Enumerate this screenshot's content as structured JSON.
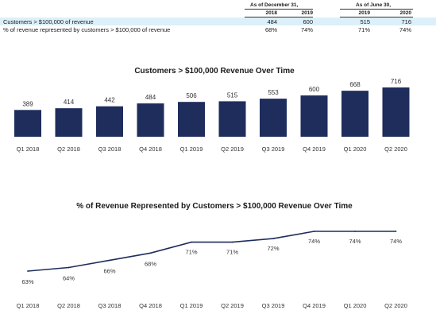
{
  "table": {
    "group_headers": [
      "As of December 31,",
      "As of June 30,"
    ],
    "year_headers": [
      "2018",
      "2019",
      "2019",
      "2020"
    ],
    "rows": [
      {
        "label": "Customers > $100,000 of revenue",
        "values": [
          "484",
          "600",
          "515",
          "716"
        ]
      },
      {
        "label": "% of revenue represented by customers > $100,000 of revenue",
        "values": [
          "68%",
          "74%",
          "71%",
          "74%"
        ]
      }
    ]
  },
  "chart_data": [
    {
      "type": "bar",
      "title": "Customers > $100,000 Revenue Over Time",
      "xlabel": "",
      "ylabel": "",
      "categories": [
        "Q1 2018",
        "Q2 2018",
        "Q3 2018",
        "Q4 2018",
        "Q1 2019",
        "Q2 2019",
        "Q3 2019",
        "Q4 2019",
        "Q1 2020",
        "Q2 2020"
      ],
      "values": [
        389,
        414,
        442,
        484,
        506,
        515,
        553,
        600,
        668,
        716
      ],
      "data_labels": [
        "389",
        "414",
        "442",
        "484",
        "506",
        "515",
        "553",
        "600",
        "668",
        "716"
      ],
      "bar_color": "#1f2d5c",
      "ylim": [
        0,
        716
      ],
      "grid": false,
      "legend": "none"
    },
    {
      "type": "line",
      "title": "% of Revenue Represented by Customers > $100,000 Revenue Over Time",
      "xlabel": "",
      "ylabel": "",
      "categories": [
        "Q1 2018",
        "Q2 2018",
        "Q3 2018",
        "Q4 2018",
        "Q1 2019",
        "Q2 2019",
        "Q3 2019",
        "Q4 2019",
        "Q1 2020",
        "Q2 2020"
      ],
      "values": [
        63,
        64,
        66,
        68,
        71,
        71,
        72,
        74,
        74,
        74
      ],
      "data_labels": [
        "63%",
        "64%",
        "66%",
        "68%",
        "71%",
        "71%",
        "72%",
        "74%",
        "74%",
        "74%"
      ],
      "line_color": "#1f2d5c",
      "grid": false,
      "legend": "none"
    }
  ]
}
